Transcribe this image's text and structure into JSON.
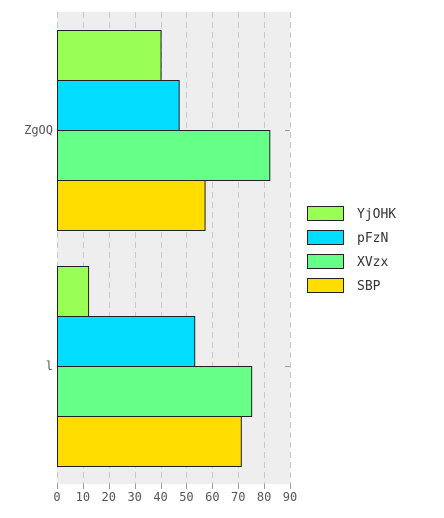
{
  "chart_data": {
    "type": "bar",
    "orientation": "horizontal",
    "title": "",
    "xlabel": "",
    "ylabel": "",
    "categories": [
      "ZgOQ",
      "l"
    ],
    "series": [
      {
        "name": "YjOHK",
        "values": [
          40,
          12
        ],
        "color": "#99ff55"
      },
      {
        "name": "pFzN",
        "values": [
          47,
          53
        ],
        "color": "#00ddff"
      },
      {
        "name": "XVzx",
        "values": [
          82,
          75
        ],
        "color": "#66ff88"
      },
      {
        "name": "SBP",
        "values": [
          57,
          71
        ],
        "color": "#ffdd00"
      }
    ],
    "xlim": [
      0,
      90
    ],
    "xticks": [
      0,
      10,
      20,
      30,
      40,
      50,
      60,
      70,
      80,
      90
    ],
    "grid": true,
    "legend_position": "right",
    "background": "#eeeeee"
  }
}
